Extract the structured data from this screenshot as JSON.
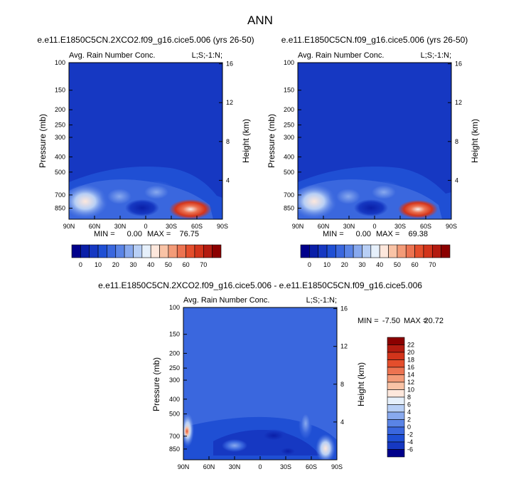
{
  "figure": {
    "main_title": "ANN"
  },
  "panels": [
    {
      "title": "e.e11.E1850C5CN.2XCO2.f09_g16.cice5.006 (yrs 26-50)",
      "left_label": "Avg. Rain Number Conc.",
      "right_label": "L;S;-1:N;",
      "min_label": "MIN =",
      "min_value": "0.00",
      "max_label": "MAX =",
      "max_value": "76.75",
      "ylabel": "Pressure (mb)",
      "ylabel_right": "Height (km)"
    },
    {
      "title": "e.e11.E1850C5CN.f09_g16.cice5.006 (yrs 26-50)",
      "left_label": "Avg. Rain Number Conc.",
      "right_label": "L;S;-1:N;",
      "min_label": "MIN =",
      "min_value": "0.00",
      "max_label": "MAX =",
      "max_value": "69.38",
      "ylabel": "Pressure (mb)",
      "ylabel_right": "Height (km)"
    },
    {
      "title": "e.e11.E1850C5CN.2XCO2.f09_g16.cice5.006 - e.e11.E1850C5CN.f09_g16.cice5.006",
      "left_label": "Avg. Rain Number Conc.",
      "right_label": "L;S;-1:N;",
      "min_label": "MIN =",
      "min_value": "-7.50",
      "max_label": "MAX =",
      "max_value": "20.72",
      "ylabel": "Pressure (mb)",
      "ylabel_right": "Height (km)"
    }
  ],
  "chart_data": [
    {
      "type": "heatmap",
      "title": "e.e11.E1850C5CN.2XCO2.f09_g16.cice5.006 (yrs 26-50)",
      "x_ticks": [
        "90N",
        "60N",
        "30N",
        "0",
        "30S",
        "60S",
        "90S"
      ],
      "x_tick_values": [
        90,
        60,
        30,
        0,
        -30,
        -60,
        -90
      ],
      "y_ticks": [
        "100",
        "150",
        "200",
        "250",
        "300",
        "400",
        "500",
        "700",
        "850"
      ],
      "y_tick_values": [
        100,
        150,
        200,
        250,
        300,
        400,
        500,
        700,
        850
      ],
      "y_right_ticks": [
        "16",
        "12",
        "8",
        "4"
      ],
      "y_right_tick_values": [
        16,
        12,
        8,
        4
      ],
      "xlim": [
        90,
        -90
      ],
      "ylim": [
        100,
        1000
      ],
      "y_scale": "log",
      "ylabel": "Pressure (mb)",
      "ylabel_right": "Height (km)",
      "min": 0.0,
      "max": 76.75,
      "colorbar": {
        "orientation": "horizontal",
        "labels": [
          "0",
          "10",
          "20",
          "30",
          "40",
          "50",
          "60",
          "70"
        ],
        "levels": [
          -5,
          0,
          5,
          10,
          15,
          20,
          25,
          30,
          35,
          40,
          45,
          50,
          55,
          60,
          65,
          70,
          75
        ],
        "colors": [
          "#00008b",
          "#0a1fa8",
          "#1638c2",
          "#1f4fd4",
          "#3a67de",
          "#5a84e6",
          "#88a9ee",
          "#b8cff5",
          "#e6f0fb",
          "#fde7dc",
          "#f9c3a6",
          "#f39b78",
          "#ec7351",
          "#e44e2c",
          "#d2341b",
          "#b31b10",
          "#8b0000"
        ]
      }
    },
    {
      "type": "heatmap",
      "title": "e.e11.E1850C5CN.f09_g16.cice5.006 (yrs 26-50)",
      "x_ticks": [
        "90N",
        "60N",
        "30N",
        "0",
        "30S",
        "60S",
        "90S"
      ],
      "x_tick_values": [
        90,
        60,
        30,
        0,
        -30,
        -60,
        -90
      ],
      "y_ticks": [
        "100",
        "150",
        "200",
        "250",
        "300",
        "400",
        "500",
        "700",
        "850"
      ],
      "y_tick_values": [
        100,
        150,
        200,
        250,
        300,
        400,
        500,
        700,
        850
      ],
      "y_right_ticks": [
        "16",
        "12",
        "8",
        "4"
      ],
      "y_right_tick_values": [
        16,
        12,
        8,
        4
      ],
      "xlim": [
        90,
        -90
      ],
      "ylim": [
        100,
        1000
      ],
      "y_scale": "log",
      "ylabel": "Pressure (mb)",
      "ylabel_right": "Height (km)",
      "min": 0.0,
      "max": 69.38,
      "colorbar": {
        "orientation": "horizontal",
        "labels": [
          "0",
          "10",
          "20",
          "30",
          "40",
          "50",
          "60",
          "70"
        ],
        "levels": [
          -5,
          0,
          5,
          10,
          15,
          20,
          25,
          30,
          35,
          40,
          45,
          50,
          55,
          60,
          65,
          70,
          75
        ],
        "colors": [
          "#00008b",
          "#0a1fa8",
          "#1638c2",
          "#1f4fd4",
          "#3a67de",
          "#5a84e6",
          "#88a9ee",
          "#b8cff5",
          "#e6f0fb",
          "#fde7dc",
          "#f9c3a6",
          "#f39b78",
          "#ec7351",
          "#e44e2c",
          "#d2341b",
          "#b31b10",
          "#8b0000"
        ]
      }
    },
    {
      "type": "heatmap",
      "title": "e.e11.E1850C5CN.2XCO2.f09_g16.cice5.006 - e.e11.E1850C5CN.f09_g16.cice5.006",
      "x_ticks": [
        "90N",
        "60N",
        "30N",
        "0",
        "30S",
        "60S",
        "90S"
      ],
      "x_tick_values": [
        90,
        60,
        30,
        0,
        -30,
        -60,
        -90
      ],
      "y_ticks": [
        "100",
        "150",
        "200",
        "250",
        "300",
        "400",
        "500",
        "700",
        "850"
      ],
      "y_tick_values": [
        100,
        150,
        200,
        250,
        300,
        400,
        500,
        700,
        850
      ],
      "y_right_ticks": [
        "16",
        "12",
        "8",
        "4"
      ],
      "y_right_tick_values": [
        16,
        12,
        8,
        4
      ],
      "xlim": [
        90,
        -90
      ],
      "ylim": [
        100,
        1000
      ],
      "y_scale": "log",
      "ylabel": "Pressure (mb)",
      "ylabel_right": "Height (km)",
      "min": -7.5,
      "max": 20.72,
      "colorbar": {
        "orientation": "vertical",
        "labels": [
          "22",
          "20",
          "18",
          "16",
          "14",
          "12",
          "10",
          "8",
          "6",
          "4",
          "2",
          "0",
          "-2",
          "-4",
          "-6"
        ],
        "levels": [
          23,
          21,
          19,
          17,
          15,
          13,
          11,
          9,
          7,
          5,
          3,
          1,
          -1,
          -3,
          -5,
          -7
        ],
        "colors": [
          "#8b0000",
          "#b31b10",
          "#d2341b",
          "#e44e2c",
          "#ec7351",
          "#f39b78",
          "#f9c3a6",
          "#fde7dc",
          "#e6f0fb",
          "#b8cff5",
          "#88a9ee",
          "#5a84e6",
          "#3a67de",
          "#1f4fd4",
          "#1638c2",
          "#00008b"
        ]
      }
    }
  ]
}
